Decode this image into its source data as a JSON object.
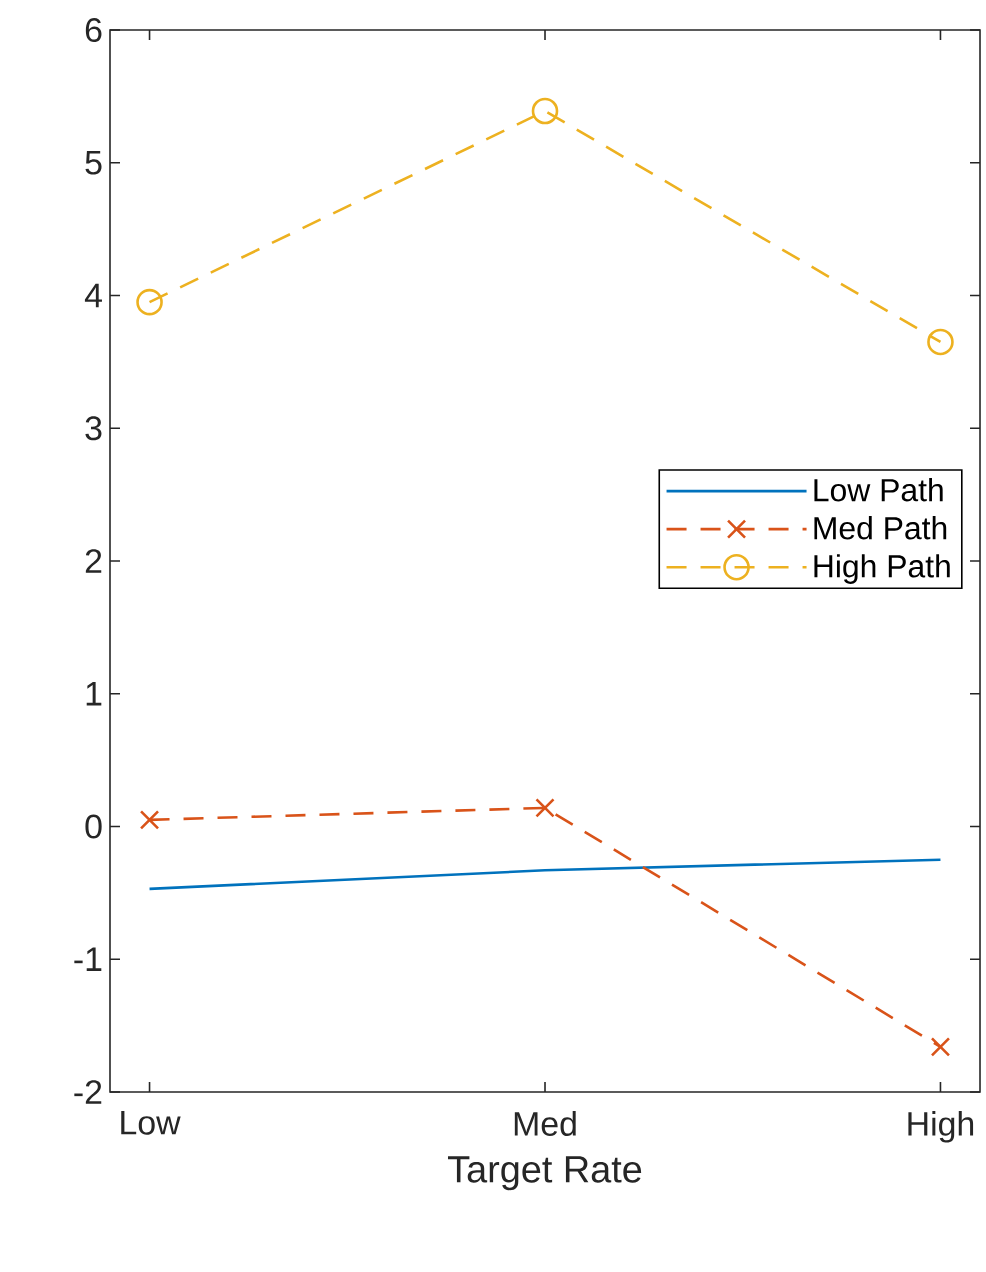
{
  "chart_data": {
    "type": "line",
    "xlabel": "Target Rate",
    "categories": [
      "Low",
      "Med",
      "High"
    ],
    "series": [
      {
        "name": "Low Path",
        "color": "#0072bd",
        "values": [
          -0.47,
          -0.33,
          -0.25
        ],
        "line_style": "solid",
        "marker": "none"
      },
      {
        "name": "Med Path",
        "color": "#d95319",
        "values": [
          0.05,
          0.14,
          -1.66
        ],
        "line_style": "dashed",
        "marker": "cross"
      },
      {
        "name": "High Path",
        "color": "#edb120",
        "values": [
          3.95,
          5.39,
          3.65
        ],
        "line_style": "dashed",
        "marker": "circle"
      }
    ],
    "ylim": [
      -2,
      6
    ],
    "yticks": [
      -2,
      -1,
      0,
      1,
      2,
      3,
      4,
      5,
      6
    ],
    "legend": "right",
    "grid": false
  }
}
